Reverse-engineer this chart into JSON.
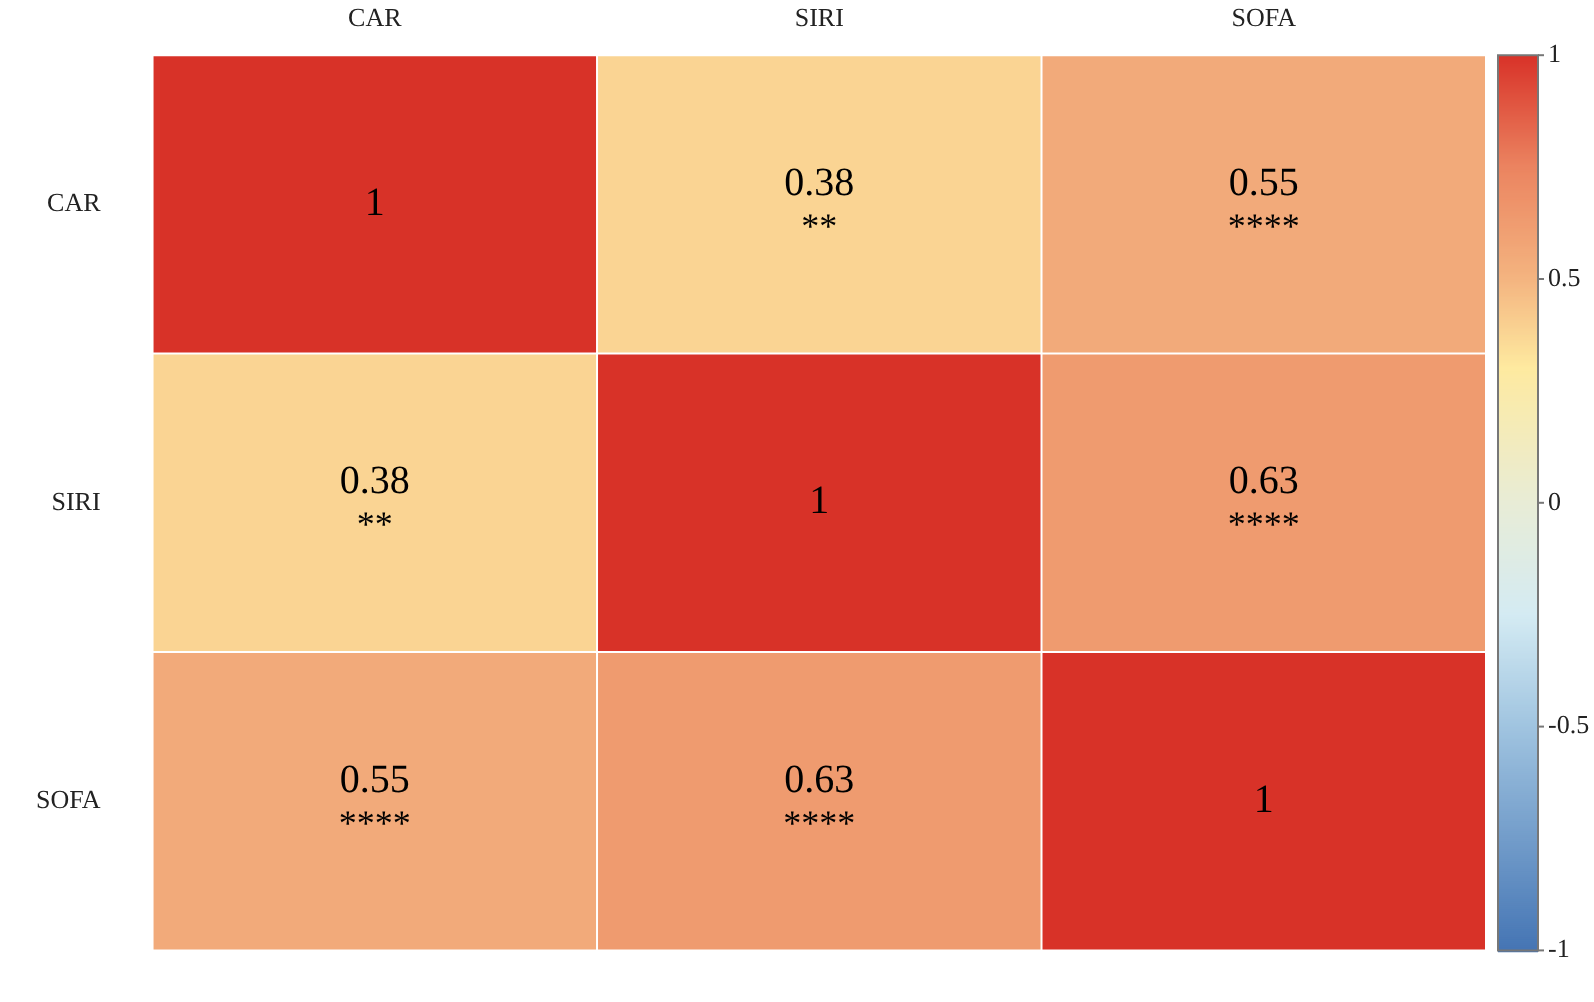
{
  "chart_data": {
    "type": "heatmap",
    "categories": [
      "CAR",
      "SIRI",
      "SOFA"
    ],
    "y_categories": [
      "CAR",
      "SIRI",
      "SOFA"
    ],
    "cells": [
      [
        1,
        0.38,
        0.55
      ],
      [
        0.38,
        1,
        0.63
      ],
      [
        0.55,
        0.63,
        1
      ]
    ],
    "cell_labels": [
      [
        "1",
        "0.38\n**",
        "0.55\n****"
      ],
      [
        "0.38\n**",
        "1",
        "0.63\n****"
      ],
      [
        "0.55\n****",
        "0.63\n****",
        "1"
      ]
    ],
    "clim": [
      -1,
      1
    ],
    "cticks": [
      -1,
      -0.5,
      0,
      0.5,
      1
    ]
  }
}
